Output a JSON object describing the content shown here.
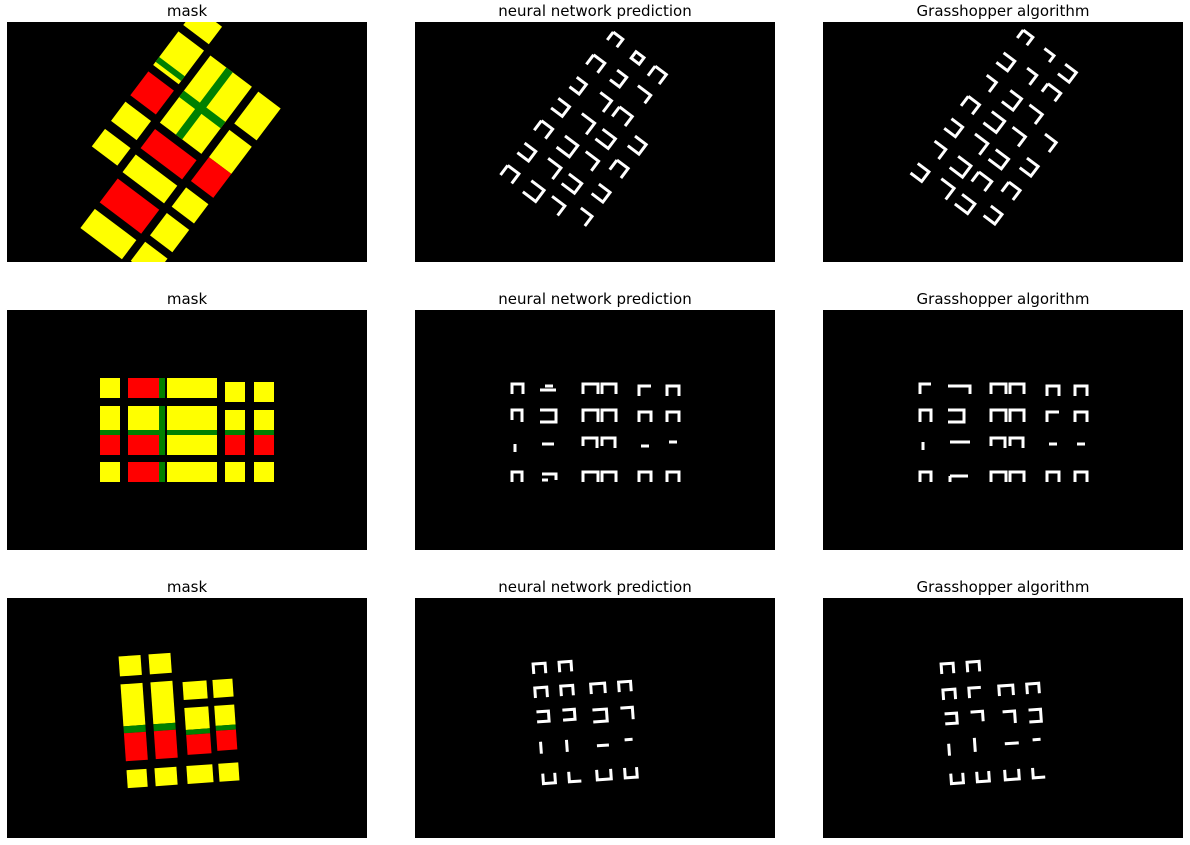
{
  "figure": {
    "rows": [
      {
        "panels": [
          {
            "title": "mask",
            "kind": "mask",
            "layout": "rotated"
          },
          {
            "title": "neural network prediction",
            "kind": "prediction",
            "layout": "rotated"
          },
          {
            "title": "Grasshopper algorithm",
            "kind": "algorithm",
            "layout": "rotated"
          }
        ]
      },
      {
        "panels": [
          {
            "title": "mask",
            "kind": "mask",
            "layout": "grid"
          },
          {
            "title": "neural network prediction",
            "kind": "prediction",
            "layout": "grid"
          },
          {
            "title": "Grasshopper algorithm",
            "kind": "algorithm",
            "layout": "grid"
          }
        ]
      },
      {
        "panels": [
          {
            "title": "mask",
            "kind": "mask",
            "layout": "stepped"
          },
          {
            "title": "neural network prediction",
            "kind": "prediction",
            "layout": "stepped"
          },
          {
            "title": "Grasshopper algorithm",
            "kind": "algorithm",
            "layout": "stepped"
          }
        ]
      }
    ]
  },
  "colors": {
    "background": "#000000",
    "yellow": "#ffff00",
    "red": "#ff0000",
    "green": "#008000",
    "white": "#ffffff"
  }
}
